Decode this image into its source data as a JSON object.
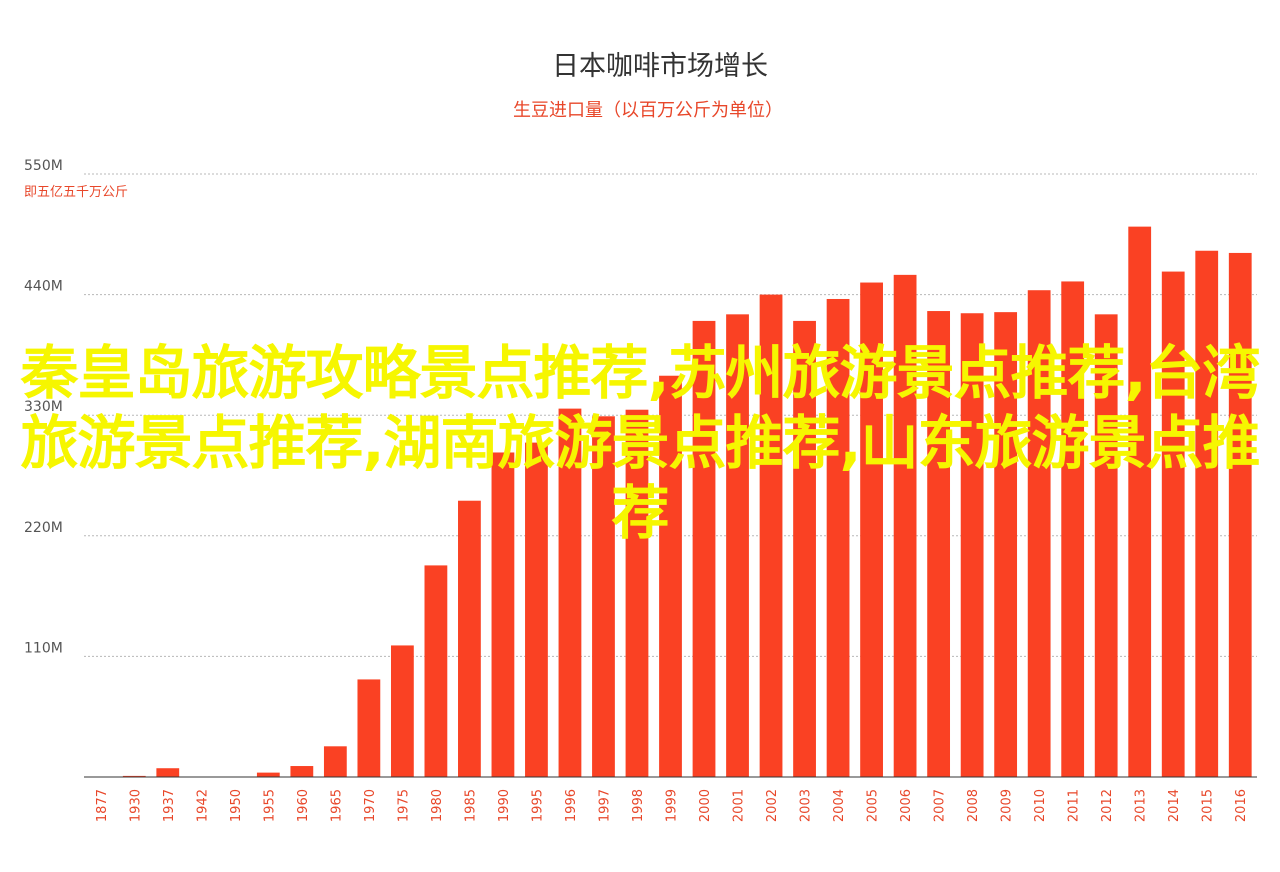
{
  "overlay_text": "秦皇岛旅游攻略景点推荐,苏州旅游景点推荐,台湾旅游景点推荐,湖南旅游景点推荐,山东旅游景点推荐",
  "colors": {
    "bar": "#fa4123",
    "accent": "#e8472a",
    "grid": "#b8b8b8",
    "overlay": "#f6f600"
  },
  "chart_data": {
    "type": "bar",
    "title": "日本咖啡市场增长",
    "subtitle": "生豆进口量（以百万公斤为单位）",
    "ylim": [
      0,
      550
    ],
    "y_ticks": [
      {
        "value": 110,
        "label": "110M"
      },
      {
        "value": 220,
        "label": "220M"
      },
      {
        "value": 330,
        "label": "330M"
      },
      {
        "value": 440,
        "label": "440M"
      },
      {
        "value": 550,
        "label": "550M"
      }
    ],
    "y_note": "即五亿五千万公斤",
    "grid": true,
    "categories": [
      "1877",
      "1930",
      "1937",
      "1942",
      "1950",
      "1955",
      "1960",
      "1965",
      "1970",
      "1975",
      "1980",
      "1985",
      "1990",
      "1995",
      "1996",
      "1997",
      "1998",
      "1999",
      "2000",
      "2001",
      "2002",
      "2003",
      "2004",
      "2005",
      "2006",
      "2007",
      "2008",
      "2009",
      "2010",
      "2011",
      "2012",
      "2013",
      "2014",
      "2015",
      "2016"
    ],
    "values": [
      0,
      1,
      8,
      0,
      0,
      4,
      10,
      28,
      89,
      120,
      193,
      252,
      296,
      305,
      336,
      329,
      335,
      366,
      416,
      422,
      440,
      416,
      436,
      451,
      458,
      425,
      423,
      424,
      444,
      452,
      422,
      502,
      461,
      480,
      478
    ]
  }
}
